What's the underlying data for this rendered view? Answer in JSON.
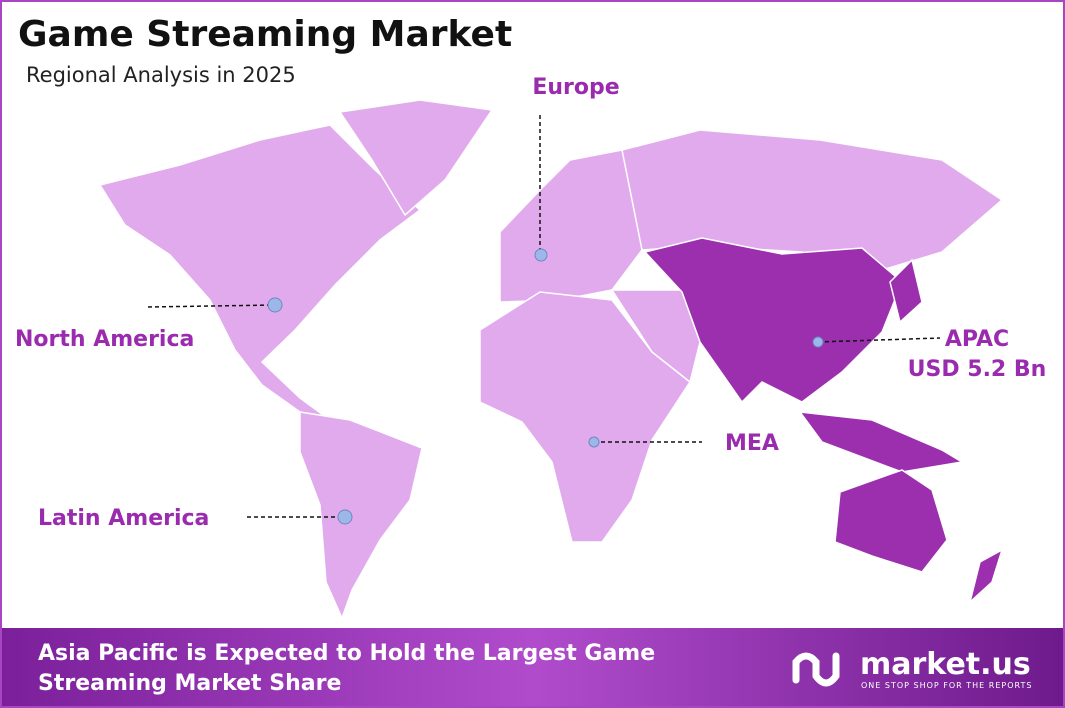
{
  "header": {
    "title": "Game Streaming Market",
    "subtitle": "Regional Analysis in 2025"
  },
  "regions": [
    {
      "label": "Europe"
    },
    {
      "label": "North America"
    },
    {
      "label": "Latin America"
    },
    {
      "label": "MEA"
    },
    {
      "label": "APAC",
      "value": "USD 5.2 Bn"
    }
  ],
  "footer": {
    "lines": [
      "Asia Pacific is Expected to Hold the Largest Game",
      "Streaming Market Share"
    ]
  },
  "logo": {
    "name": "market.us",
    "tagline": "ONE STOP SHOP FOR THE REPORTS"
  }
}
